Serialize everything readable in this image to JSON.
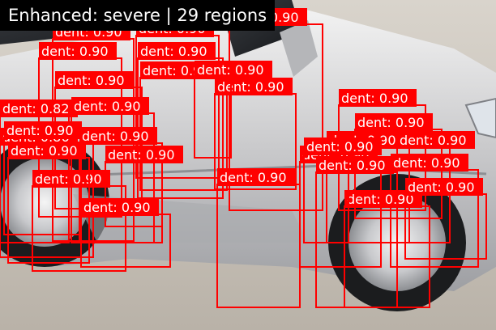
{
  "banner": {
    "text": "Enhanced: severe | 29 regions"
  },
  "colors": {
    "box": "#ff0000",
    "label_bg": "#ff0000",
    "label_text": "#ffffff",
    "banner_bg": "#000000",
    "banner_text": "#ffffff"
  },
  "detections": [
    {
      "label": "dent",
      "score": "0.90"
    },
    {
      "label": "dent",
      "score": "0.90"
    },
    {
      "label": "dent",
      "score": "0.90"
    },
    {
      "label": "dent",
      "score": "0.90"
    },
    {
      "label": "dent",
      "score": "0.90"
    },
    {
      "label": "dent",
      "score": "0.90"
    },
    {
      "label": "dent",
      "score": "0.90"
    },
    {
      "label": "dent",
      "score": "0.90"
    },
    {
      "label": "dent",
      "score": "0.82"
    },
    {
      "label": "dent",
      "score": "0.90"
    },
    {
      "label": "dent",
      "score": "0.86"
    },
    {
      "label": "dent",
      "score": "0.90"
    },
    {
      "label": "dent",
      "score": "0.90"
    },
    {
      "label": "dent",
      "score": "0.90"
    },
    {
      "label": "dent",
      "score": "0.90"
    },
    {
      "label": "dent",
      "score": "0.90"
    },
    {
      "label": "dent",
      "score": "0.90"
    },
    {
      "label": "dent",
      "score": "0.90"
    },
    {
      "label": "dent",
      "score": "0.90"
    },
    {
      "label": "dent",
      "score": "0.90"
    },
    {
      "label": "dent",
      "score": "0.90"
    },
    {
      "label": "dent",
      "score": "0.90"
    },
    {
      "label": "dent",
      "score": "0.90"
    },
    {
      "label": "dent",
      "score": "0.90"
    },
    {
      "label": "dent",
      "score": "0.90"
    },
    {
      "label": "dent",
      "score": "0.90"
    },
    {
      "label": "dent",
      "score": "0.90"
    },
    {
      "label": "dent",
      "score": "0.90"
    },
    {
      "label": "dent",
      "score": "0.90"
    }
  ]
}
